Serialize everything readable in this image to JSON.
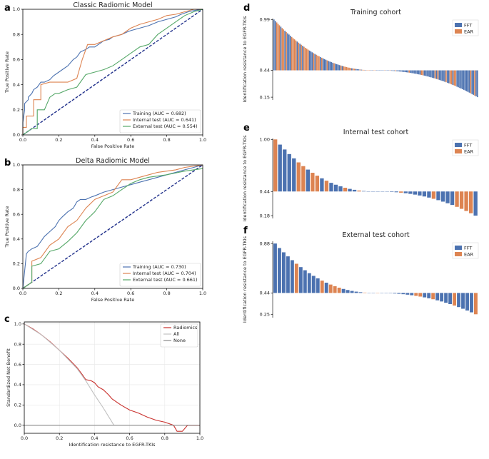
{
  "panel_letters": [
    "a",
    "b",
    "c",
    "d",
    "e",
    "f"
  ],
  "colors": {
    "training": "#4c72b0",
    "internal": "#dd8452",
    "external": "#55a868",
    "diagonal": "#1f2f8a",
    "fft": "#4c72b0",
    "ear": "#dd8452",
    "radiomics": "#c9302c",
    "all": "#c0c0c0",
    "none": "#888888"
  },
  "chart_data": [
    {
      "id": "a",
      "type": "line",
      "title": "Classic Radiomic Model",
      "xlabel": "False Positive Rate",
      "ylabel": "True Positive Rate",
      "xlim": [
        0,
        1
      ],
      "ylim": [
        0,
        1
      ],
      "xticks": [
        "0.0",
        "0.2",
        "0.4",
        "0.6",
        "0.8",
        "1.0"
      ],
      "yticks": [
        "0.0",
        "0.2",
        "0.4",
        "0.6",
        "0.8",
        "1.0"
      ],
      "legend_position": "lower-right",
      "series": [
        {
          "name": "Training (AUC = 0.682)",
          "color": "#4c72b0",
          "x": [
            0,
            0,
            0.01,
            0.01,
            0.03,
            0.03,
            0.05,
            0.06,
            0.08,
            0.1,
            0.12,
            0.15,
            0.17,
            0.2,
            0.22,
            0.25,
            0.28,
            0.3,
            0.32,
            0.35,
            0.37,
            0.4,
            0.42,
            0.45,
            0.48,
            0.5,
            0.55,
            0.58,
            0.6,
            0.65,
            0.7,
            0.75,
            0.8,
            0.85,
            0.88,
            0.92,
            0.95,
            1
          ],
          "y": [
            0,
            0.1,
            0.2,
            0.25,
            0.28,
            0.3,
            0.33,
            0.36,
            0.38,
            0.42,
            0.42,
            0.44,
            0.47,
            0.5,
            0.52,
            0.55,
            0.6,
            0.62,
            0.66,
            0.68,
            0.7,
            0.7,
            0.72,
            0.75,
            0.76,
            0.78,
            0.8,
            0.82,
            0.83,
            0.85,
            0.87,
            0.9,
            0.92,
            0.94,
            0.96,
            0.98,
            0.99,
            1
          ]
        },
        {
          "name": "Internal test (AUC = 0.641)",
          "color": "#dd8452",
          "x": [
            0,
            0,
            0.02,
            0.02,
            0.06,
            0.06,
            0.1,
            0.1,
            0.15,
            0.2,
            0.25,
            0.3,
            0.33,
            0.36,
            0.4,
            0.45,
            0.5,
            0.55,
            0.6,
            0.65,
            0.7,
            0.75,
            0.8,
            0.85,
            0.9,
            0.95,
            1
          ],
          "y": [
            0,
            0.06,
            0.06,
            0.15,
            0.15,
            0.28,
            0.28,
            0.4,
            0.42,
            0.42,
            0.42,
            0.45,
            0.6,
            0.72,
            0.72,
            0.75,
            0.78,
            0.8,
            0.85,
            0.88,
            0.9,
            0.92,
            0.95,
            0.96,
            0.98,
            1,
            1
          ]
        },
        {
          "name": "External test (AUC = 0.554)",
          "color": "#55a868",
          "x": [
            0,
            0.05,
            0.08,
            0.08,
            0.12,
            0.15,
            0.18,
            0.2,
            0.25,
            0.3,
            0.35,
            0.4,
            0.45,
            0.5,
            0.55,
            0.6,
            0.65,
            0.7,
            0.75,
            0.8,
            0.85,
            0.9,
            0.95,
            1
          ],
          "y": [
            0,
            0.05,
            0.05,
            0.2,
            0.2,
            0.3,
            0.33,
            0.33,
            0.36,
            0.38,
            0.48,
            0.5,
            0.52,
            0.55,
            0.6,
            0.65,
            0.7,
            0.72,
            0.8,
            0.85,
            0.9,
            0.95,
            0.98,
            1
          ]
        }
      ]
    },
    {
      "id": "b",
      "type": "line",
      "title": "Delta Radiomic Model",
      "xlabel": "False Positive Rate",
      "ylabel": "True Positive Rate",
      "xlim": [
        0,
        1
      ],
      "ylim": [
        0,
        1
      ],
      "xticks": [
        "0.0",
        "0.2",
        "0.4",
        "0.6",
        "0.8",
        "1.0"
      ],
      "yticks": [
        "0.0",
        "0.2",
        "0.4",
        "0.6",
        "0.8",
        "1.0"
      ],
      "legend_position": "lower-right",
      "series": [
        {
          "name": "Training (AUC = 0.730)",
          "color": "#4c72b0",
          "x": [
            0,
            0.02,
            0.03,
            0.05,
            0.08,
            0.1,
            0.12,
            0.15,
            0.18,
            0.2,
            0.22,
            0.25,
            0.28,
            0.3,
            0.32,
            0.35,
            0.38,
            0.4,
            0.45,
            0.5,
            0.55,
            0.6,
            0.65,
            0.7,
            0.75,
            0.8,
            0.85,
            0.9,
            0.95,
            1
          ],
          "y": [
            0,
            0.28,
            0.3,
            0.32,
            0.34,
            0.38,
            0.42,
            0.46,
            0.5,
            0.55,
            0.58,
            0.62,
            0.65,
            0.7,
            0.72,
            0.72,
            0.74,
            0.75,
            0.78,
            0.8,
            0.82,
            0.84,
            0.86,
            0.88,
            0.9,
            0.92,
            0.94,
            0.96,
            0.98,
            1
          ]
        },
        {
          "name": "Internal test (AUC = 0.704)",
          "color": "#dd8452",
          "x": [
            0,
            0.05,
            0.05,
            0.1,
            0.15,
            0.2,
            0.25,
            0.3,
            0.35,
            0.4,
            0.45,
            0.5,
            0.55,
            0.6,
            0.65,
            0.7,
            0.75,
            0.8,
            0.85,
            0.9,
            1
          ],
          "y": [
            0,
            0.05,
            0.22,
            0.25,
            0.35,
            0.4,
            0.5,
            0.55,
            0.65,
            0.72,
            0.75,
            0.78,
            0.88,
            0.88,
            0.9,
            0.92,
            0.94,
            0.95,
            0.96,
            0.98,
            1
          ]
        },
        {
          "name": "External test (AUC = 0.661)",
          "color": "#55a868",
          "x": [
            0,
            0.05,
            0.05,
            0.1,
            0.15,
            0.2,
            0.25,
            0.3,
            0.35,
            0.4,
            0.45,
            0.5,
            0.55,
            0.6,
            0.65,
            0.7,
            0.8,
            0.9,
            1
          ],
          "y": [
            0,
            0.05,
            0.18,
            0.2,
            0.3,
            0.32,
            0.38,
            0.45,
            0.55,
            0.62,
            0.72,
            0.75,
            0.8,
            0.85,
            0.88,
            0.9,
            0.92,
            0.95,
            0.97
          ]
        }
      ]
    },
    {
      "id": "c",
      "type": "line",
      "title": "",
      "xlabel": "Identification resistance to EGFR-TKIs",
      "ylabel": "Standardized Net Benefit",
      "xlim": [
        0,
        1
      ],
      "ylim": [
        -0.08,
        1.02
      ],
      "xticks": [
        "0.0",
        "0.2",
        "0.4",
        "0.6",
        "0.8",
        "1.0"
      ],
      "yticks": [
        "0.0",
        "0.2",
        "0.4",
        "0.6",
        "0.8",
        "1.0"
      ],
      "legend_position": "top-right",
      "series": [
        {
          "name": "Radiomics",
          "color": "#c9302c",
          "x": [
            0,
            0.05,
            0.1,
            0.15,
            0.2,
            0.25,
            0.3,
            0.33,
            0.35,
            0.38,
            0.4,
            0.42,
            0.45,
            0.48,
            0.5,
            0.55,
            0.6,
            0.65,
            0.7,
            0.75,
            0.8,
            0.85,
            0.87,
            0.9,
            0.93,
            0.95,
            1
          ],
          "y": [
            1,
            0.95,
            0.89,
            0.82,
            0.74,
            0.66,
            0.57,
            0.5,
            0.45,
            0.44,
            0.42,
            0.38,
            0.35,
            0.3,
            0.26,
            0.2,
            0.15,
            0.12,
            0.08,
            0.05,
            0.03,
            0,
            -0.06,
            -0.06,
            0,
            0,
            0
          ]
        },
        {
          "name": "All",
          "color": "#c0c0c0",
          "x": [
            0,
            0.1,
            0.2,
            0.3,
            0.35,
            0.4,
            0.45,
            0.5,
            0.51
          ],
          "y": [
            1,
            0.89,
            0.74,
            0.56,
            0.44,
            0.3,
            0.17,
            0.03,
            0
          ]
        },
        {
          "name": "None",
          "color": "#888888",
          "x": [
            0,
            1
          ],
          "y": [
            0,
            0
          ]
        }
      ]
    },
    {
      "id": "d",
      "type": "bar",
      "title": "Training cohort",
      "ylabel": "Identification resistance to EGFR-TKIs",
      "baseline": 0.44,
      "ylim": [
        0.12,
        1.0
      ],
      "yticks": [
        "0.99",
        "0.44",
        "0.15"
      ],
      "legend": [
        "FFT",
        "EAR"
      ],
      "legend_position": "top-right",
      "n_bars": 150,
      "max": 0.99,
      "min": 0.15
    },
    {
      "id": "e",
      "type": "bar",
      "title": "Internal test cohort",
      "ylabel": "Identification resistance to EGFR-TKIs",
      "baseline": 0.44,
      "ylim": [
        0.15,
        1.01
      ],
      "yticks": [
        "1.00",
        "0.44",
        "0.18"
      ],
      "legend": [
        "FFT",
        "EAR"
      ],
      "legend_position": "top-right",
      "n_bars": 44,
      "max": 1.0,
      "min": 0.18
    },
    {
      "id": "f",
      "type": "bar",
      "title": "External test cohort",
      "ylabel": "Identification resistance to EGFR-TKIs",
      "baseline": 0.44,
      "ylim": [
        0.22,
        0.9
      ],
      "yticks": [
        "0.88",
        "0.44",
        "0.25"
      ],
      "legend": [
        "FFT",
        "EAR"
      ],
      "legend_position": "top-right",
      "n_bars": 48,
      "max": 0.88,
      "min": 0.25
    }
  ]
}
